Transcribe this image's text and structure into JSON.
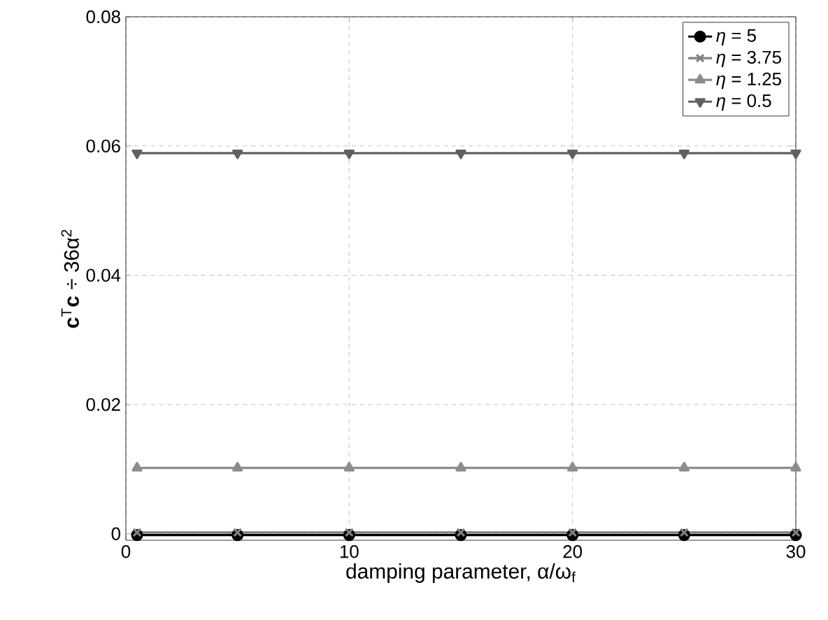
{
  "chart_data": {
    "type": "line",
    "xlabel": "damping parameter, α/ω$_{f}$",
    "ylabel": "**c**$^{T}$**c** ÷ 36α$^{2}$",
    "x": [
      0.5,
      5,
      10,
      15,
      20,
      25,
      30
    ],
    "series": [
      {
        "name": "*η* = 5",
        "color": "#000000",
        "marker": "circle",
        "values": [
          -0.0002,
          -0.0002,
          -0.0002,
          -0.0002,
          -0.0002,
          -0.0002,
          -0.0002
        ]
      },
      {
        "name": "*η* = 3.75",
        "color": "#808080",
        "marker": "cross",
        "values": [
          0.0002,
          0.0002,
          0.0002,
          0.0002,
          0.0002,
          0.0002,
          0.0002
        ]
      },
      {
        "name": "*η* = 1.25",
        "color": "#8c8c8c",
        "marker": "triangle",
        "values": [
          0.0102,
          0.0102,
          0.0102,
          0.0102,
          0.0102,
          0.0102,
          0.0102
        ]
      },
      {
        "name": "*η* = 0.5",
        "color": "#606060",
        "marker": "triangle down",
        "values": [
          0.0589,
          0.0589,
          0.0589,
          0.0589,
          0.0589,
          0.0589,
          0.0589
        ]
      }
    ],
    "xlim": [
      0,
      30
    ],
    "xticks": [
      0,
      10,
      20,
      30
    ],
    "ylim": [
      -0.001,
      0.08
    ],
    "yticks": [
      0,
      0.02,
      0.04,
      0.06,
      0.08
    ],
    "grid": true,
    "legend": "top right",
    "line_style": "solid"
  }
}
